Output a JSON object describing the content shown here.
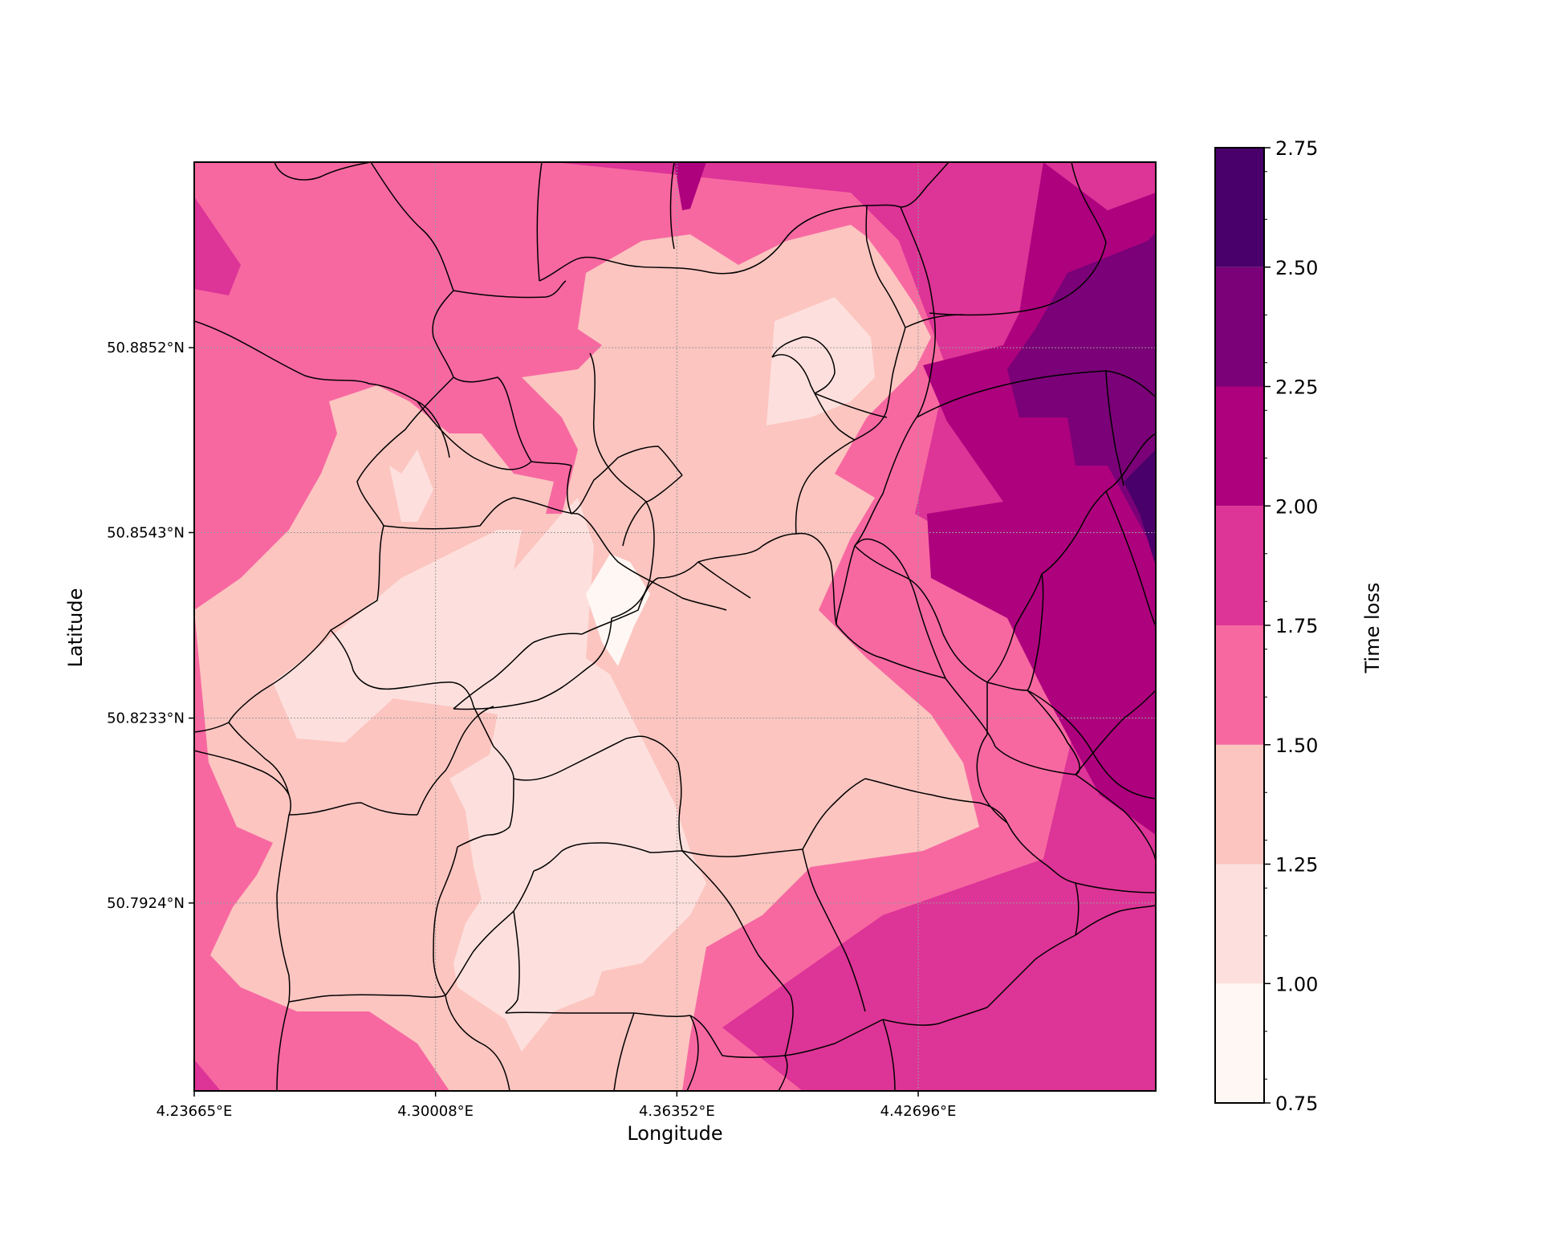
{
  "chart_data": {
    "type": "heatmap",
    "subtype": "filled contour map with district boundaries",
    "xlabel": "Longitude",
    "ylabel": "Latitude",
    "x_ticks": [
      "4.23665°E",
      "4.30008°E",
      "4.36352°E",
      "4.42696°E"
    ],
    "y_ticks": [
      "50.8852°N",
      "50.8543°N",
      "50.8233°N",
      "50.7924°N"
    ],
    "x_tick_values": [
      4.23665,
      4.30008,
      4.36352,
      4.42696
    ],
    "y_tick_values": [
      50.8852,
      50.8543,
      50.8233,
      50.7924
    ],
    "xlim": [
      4.23665,
      4.4894
    ],
    "ylim": [
      50.761,
      50.9162
    ],
    "grid": true,
    "colorbar": {
      "label": "Time loss",
      "ticks": [
        "0.75",
        "1.00",
        "1.25",
        "1.50",
        "1.75",
        "2.00",
        "2.25",
        "2.50",
        "2.75"
      ],
      "levels": [
        0.75,
        1.0,
        1.25,
        1.5,
        1.75,
        2.0,
        2.25,
        2.5,
        2.75
      ],
      "colors": [
        "#fff7f3",
        "#fde0dd",
        "#fcc5c0",
        "#f768a1",
        "#dd3497",
        "#ae017e",
        "#7a0177",
        "#49006a"
      ],
      "position": "right"
    },
    "regions": [
      {
        "level_range": [
          1.5,
          1.75
        ],
        "note": "background west and south-west"
      },
      {
        "level_range": [
          1.75,
          2.0
        ],
        "note": "north-east and south-east"
      },
      {
        "level_range": [
          2.0,
          2.25
        ],
        "note": "east"
      },
      {
        "level_range": [
          2.25,
          2.5
        ],
        "note": "north-east corner"
      },
      {
        "level_range": [
          2.5,
          2.75
        ],
        "note": "small patch at east edge"
      },
      {
        "level_range": [
          1.25,
          1.5
        ],
        "note": "central band"
      },
      {
        "level_range": [
          1.0,
          1.25
        ],
        "note": "centre and north-centre"
      },
      {
        "level_range": [
          0.75,
          1.0
        ],
        "note": "small central patch"
      }
    ]
  }
}
